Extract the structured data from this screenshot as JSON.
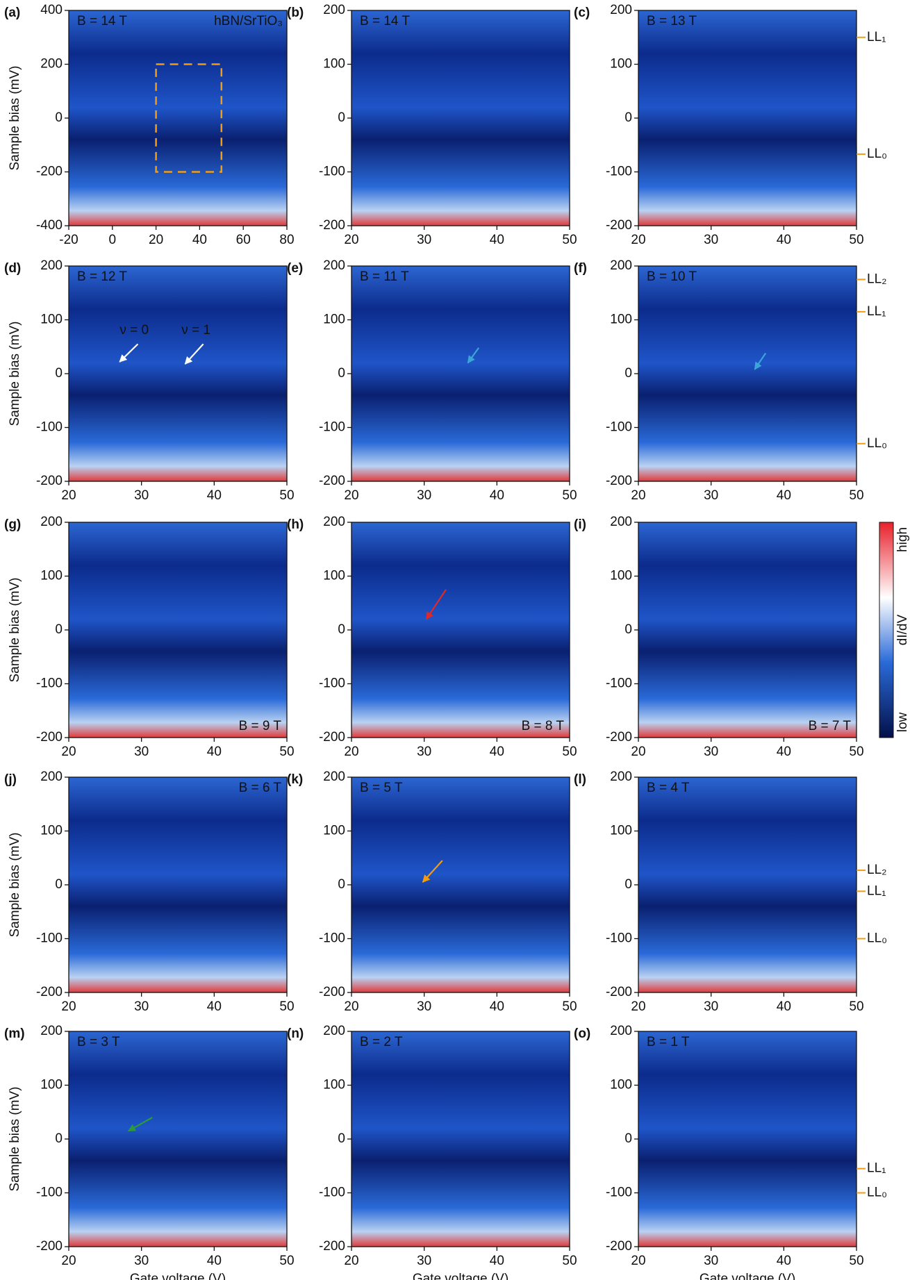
{
  "chart_data": [
    {
      "type": "heatmap",
      "panel_label": "(a)",
      "annotation": "B = 14 T",
      "annotation_corner": "top-left",
      "inset_label": "hBN/SrTiO₃",
      "y_label": "Sample bias (mV)",
      "xlim": [
        -20,
        80
      ],
      "xticks": [
        -20,
        0,
        20,
        40,
        60,
        80
      ],
      "ylim": [
        -400,
        400
      ],
      "yticks": [
        -400,
        -200,
        0,
        200,
        400
      ]
    },
    {
      "type": "heatmap",
      "panel_label": "(b)",
      "annotation": "B = 14 T",
      "annotation_corner": "top-left",
      "xlim": [
        20,
        50
      ],
      "xticks": [
        20,
        30,
        40,
        50
      ],
      "ylim": [
        -200,
        200
      ],
      "yticks": [
        -200,
        -100,
        0,
        100,
        200
      ]
    },
    {
      "type": "heatmap",
      "panel_label": "(c)",
      "annotation": "B = 13 T",
      "annotation_corner": "top-left",
      "xlim": [
        20,
        50
      ],
      "xticks": [
        20,
        30,
        40,
        50
      ],
      "ylim": [
        -200,
        200
      ],
      "yticks": [
        -200,
        -100,
        0,
        100,
        200
      ],
      "levels": [
        {
          "label": "LL₁",
          "value": 150
        },
        {
          "label": "LL₀",
          "value": -67
        }
      ]
    },
    {
      "type": "heatmap",
      "panel_label": "(d)",
      "annotation": "B = 12 T",
      "annotation_corner": "top-left",
      "notes": [
        "ν = 0",
        "ν = 1"
      ],
      "y_label": "Sample bias (mV)",
      "xlim": [
        20,
        50
      ],
      "xticks": [
        20,
        30,
        40,
        50
      ],
      "ylim": [
        -200,
        200
      ],
      "yticks": [
        -200,
        -100,
        0,
        100,
        200
      ]
    },
    {
      "type": "heatmap",
      "panel_label": "(e)",
      "annotation": "B = 11 T",
      "annotation_corner": "top-left",
      "xlim": [
        20,
        50
      ],
      "xticks": [
        20,
        30,
        40,
        50
      ],
      "ylim": [
        -200,
        200
      ],
      "yticks": [
        -200,
        -100,
        0,
        100,
        200
      ]
    },
    {
      "type": "heatmap",
      "panel_label": "(f)",
      "annotation": "B = 10 T",
      "annotation_corner": "top-left",
      "xlim": [
        20,
        50
      ],
      "xticks": [
        20,
        30,
        40,
        50
      ],
      "ylim": [
        -200,
        200
      ],
      "yticks": [
        -200,
        -100,
        0,
        100,
        200
      ],
      "levels": [
        {
          "label": "LL₂",
          "value": 175
        },
        {
          "label": "LL₁",
          "value": 115
        },
        {
          "label": "LL₀",
          "value": -130
        }
      ]
    },
    {
      "type": "heatmap",
      "panel_label": "(g)",
      "annotation": "B = 9 T",
      "annotation_corner": "bottom-right",
      "y_label": "Sample bias (mV)",
      "xlim": [
        20,
        50
      ],
      "xticks": [
        20,
        30,
        40,
        50
      ],
      "ylim": [
        -200,
        200
      ],
      "yticks": [
        -200,
        -100,
        0,
        100,
        200
      ]
    },
    {
      "type": "heatmap",
      "panel_label": "(h)",
      "annotation": "B = 8 T",
      "annotation_corner": "bottom-right",
      "xlim": [
        20,
        50
      ],
      "xticks": [
        20,
        30,
        40,
        50
      ],
      "ylim": [
        -200,
        200
      ],
      "yticks": [
        -200,
        -100,
        0,
        100,
        200
      ]
    },
    {
      "type": "heatmap",
      "panel_label": "(i)",
      "annotation": "B = 7 T",
      "annotation_corner": "bottom-right",
      "xlim": [
        20,
        50
      ],
      "xticks": [
        20,
        30,
        40,
        50
      ],
      "ylim": [
        -200,
        200
      ],
      "yticks": [
        -200,
        -100,
        0,
        100,
        200
      ]
    },
    {
      "type": "heatmap",
      "panel_label": "(j)",
      "annotation": "B = 6 T",
      "annotation_corner": "top-right",
      "y_label": "Sample bias (mV)",
      "xlim": [
        20,
        50
      ],
      "xticks": [
        20,
        30,
        40,
        50
      ],
      "ylim": [
        -200,
        200
      ],
      "yticks": [
        -200,
        -100,
        0,
        100,
        200
      ]
    },
    {
      "type": "heatmap",
      "panel_label": "(k)",
      "annotation": "B = 5 T",
      "annotation_corner": "top-left",
      "xlim": [
        20,
        50
      ],
      "xticks": [
        20,
        30,
        40,
        50
      ],
      "ylim": [
        -200,
        200
      ],
      "yticks": [
        -200,
        -100,
        0,
        100,
        200
      ]
    },
    {
      "type": "heatmap",
      "panel_label": "(l)",
      "annotation": "B = 4 T",
      "annotation_corner": "top-left",
      "xlim": [
        20,
        50
      ],
      "xticks": [
        20,
        30,
        40,
        50
      ],
      "ylim": [
        -200,
        200
      ],
      "yticks": [
        -200,
        -100,
        0,
        100,
        200
      ],
      "levels": [
        {
          "label": "LL₂",
          "value": 27
        },
        {
          "label": "LL₁",
          "value": -12
        },
        {
          "label": "LL₀",
          "value": -100
        }
      ]
    },
    {
      "type": "heatmap",
      "panel_label": "(m)",
      "annotation": "B = 3 T",
      "annotation_corner": "top-left",
      "y_label": "Sample bias (mV)",
      "x_label": "Gate voltage (V)",
      "xlim": [
        20,
        50
      ],
      "xticks": [
        20,
        30,
        40,
        50
      ],
      "ylim": [
        -200,
        200
      ],
      "yticks": [
        -200,
        -100,
        0,
        100,
        200
      ]
    },
    {
      "type": "heatmap",
      "panel_label": "(n)",
      "annotation": "B = 2 T",
      "annotation_corner": "top-left",
      "x_label": "Gate voltage (V)",
      "xlim": [
        20,
        50
      ],
      "xticks": [
        20,
        30,
        40,
        50
      ],
      "ylim": [
        -200,
        200
      ],
      "yticks": [
        -200,
        -100,
        0,
        100,
        200
      ]
    },
    {
      "type": "heatmap",
      "panel_label": "(o)",
      "annotation": "B = 1 T",
      "annotation_corner": "top-left",
      "x_label": "Gate voltage (V)",
      "xlim": [
        20,
        50
      ],
      "xticks": [
        20,
        30,
        40,
        50
      ],
      "ylim": [
        -200,
        200
      ],
      "yticks": [
        -200,
        -100,
        0,
        100,
        200
      ],
      "levels": [
        {
          "label": "LL₁",
          "value": -55
        },
        {
          "label": "LL₀",
          "value": -100
        }
      ]
    }
  ],
  "colorbar": {
    "label": "dI/dV",
    "max_label": "high",
    "min_label": "low"
  }
}
